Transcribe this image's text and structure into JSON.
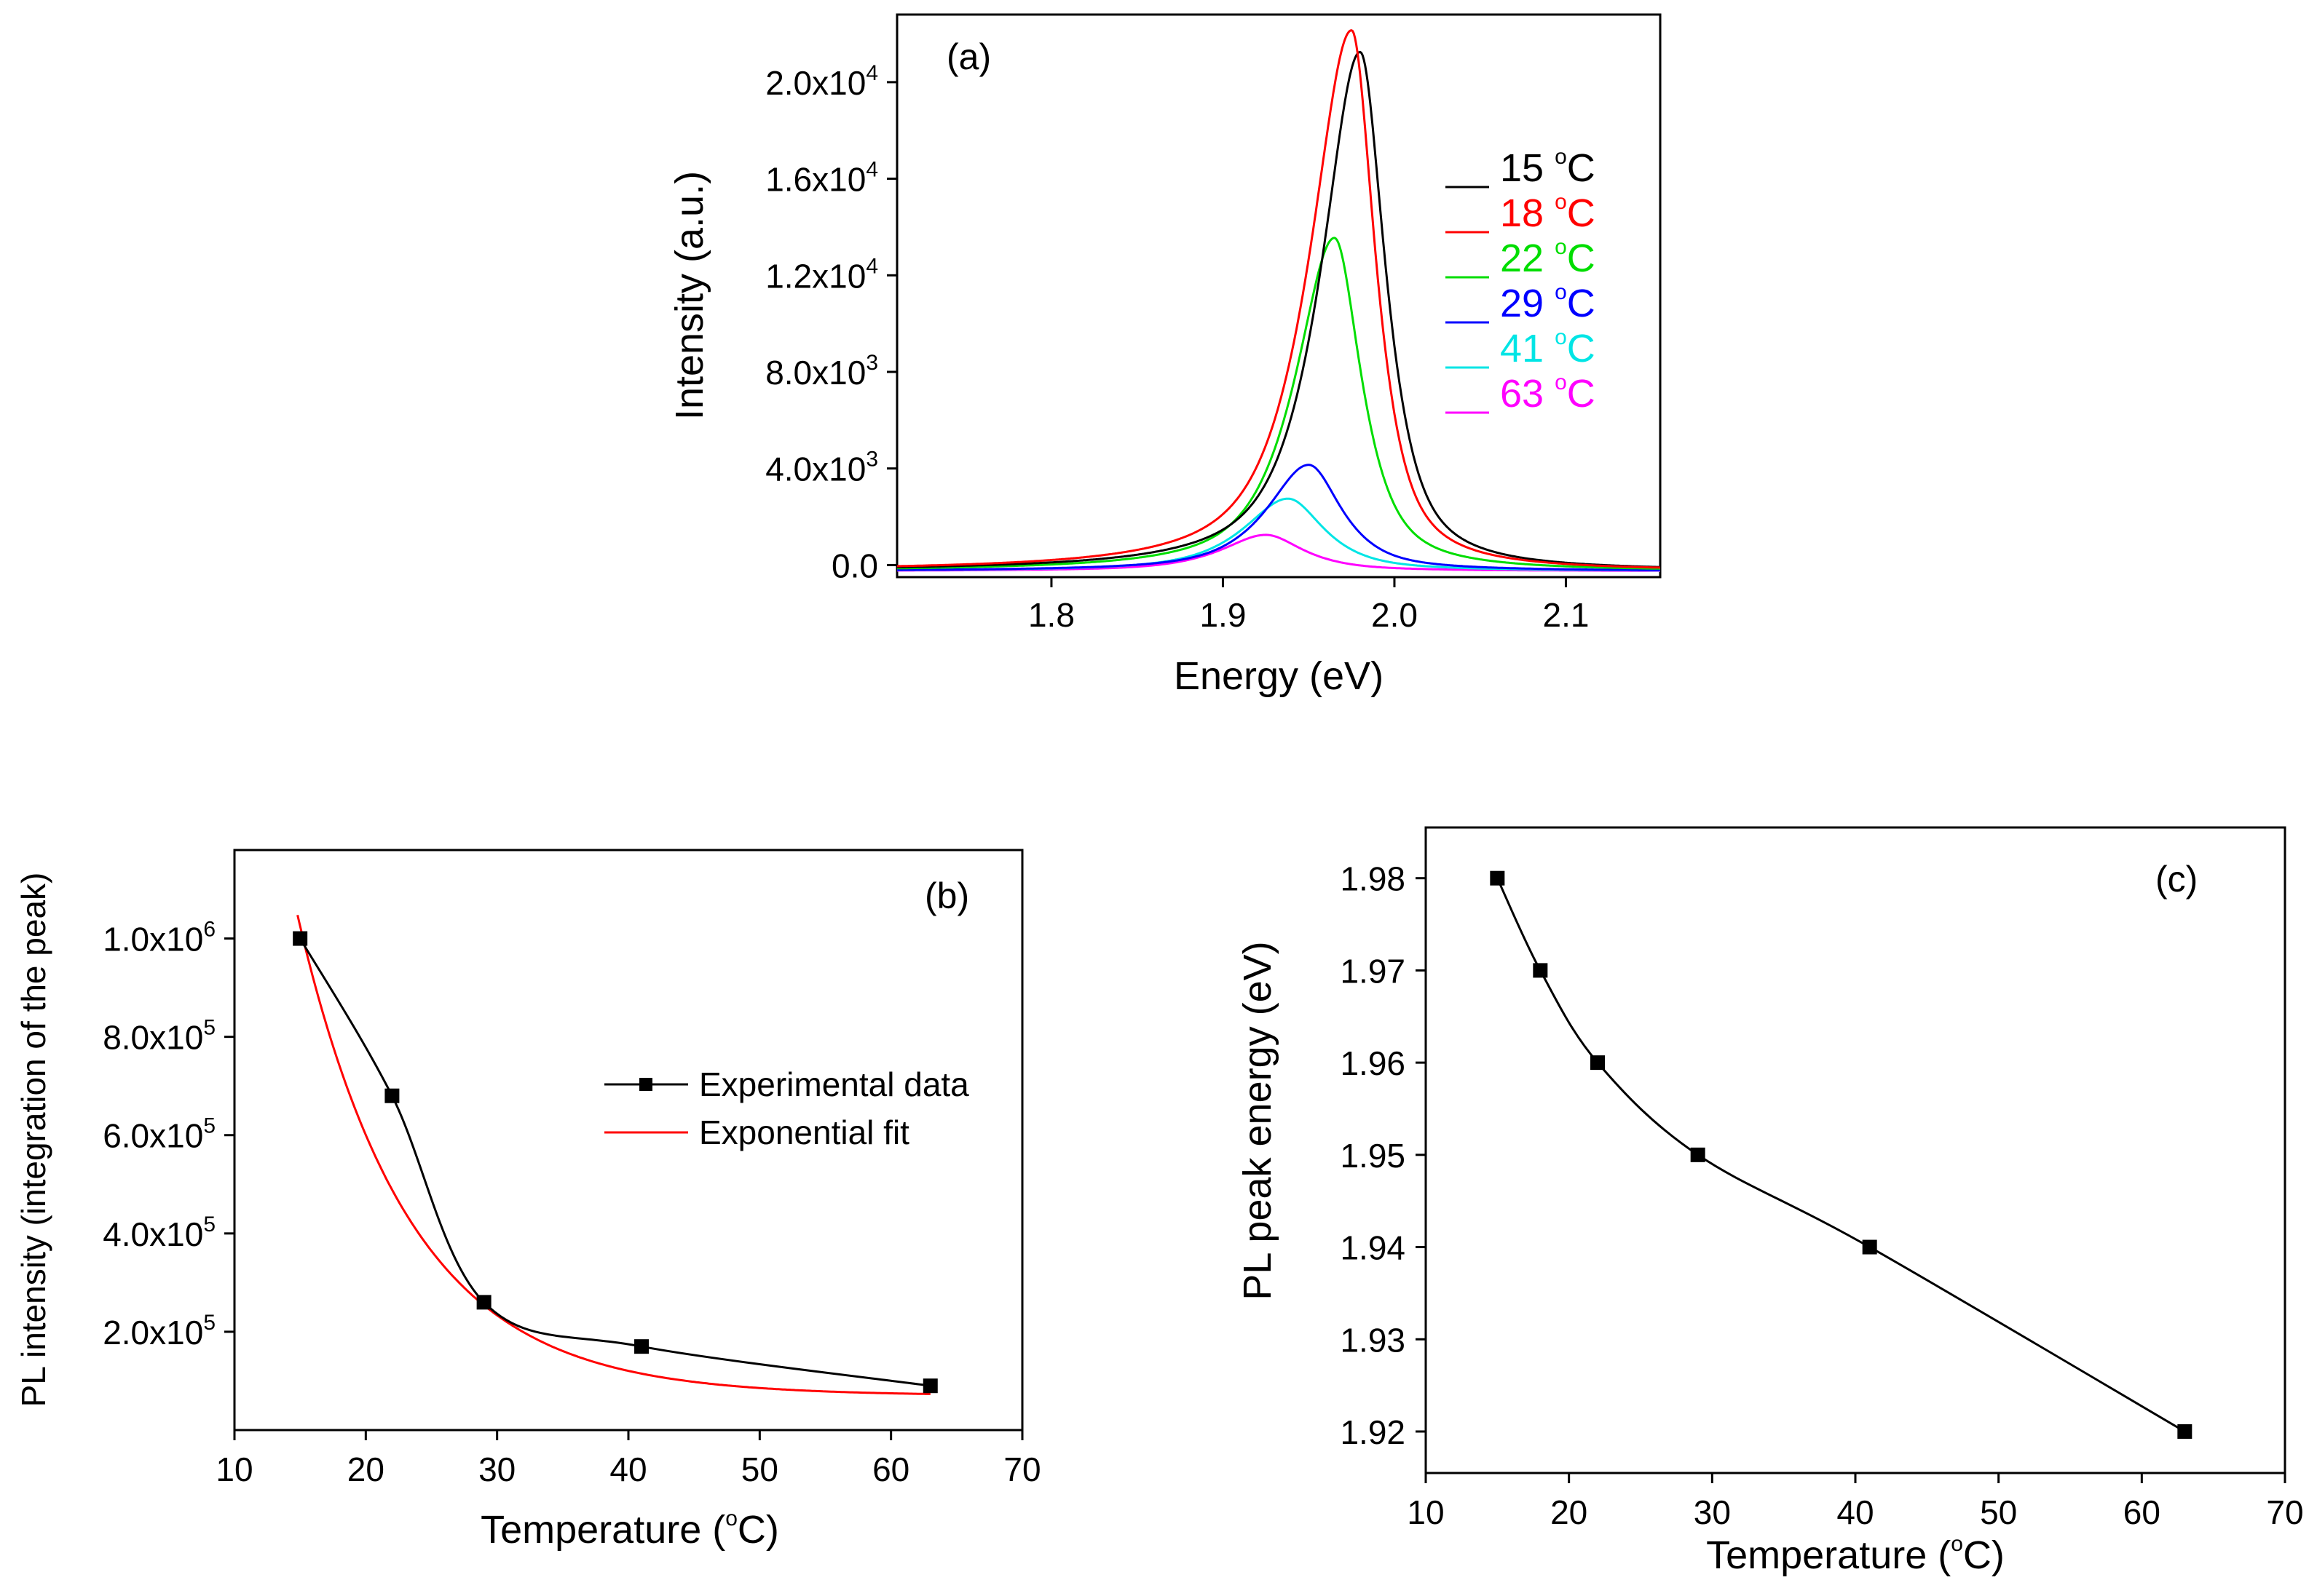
{
  "chart_data": [
    {
      "panel": "(a)",
      "type": "line",
      "xlabel": "Energy (eV)",
      "ylabel": "Intensity (a.u.)",
      "xlim": [
        1.71,
        2.155
      ],
      "ylim": [
        -500,
        22800
      ],
      "xticks": [
        1.8,
        1.9,
        2.0,
        2.1
      ],
      "xtick_labels": [
        "1.8",
        "1.9",
        "2.0",
        "2.1"
      ],
      "yticks": [
        {
          "value": 0,
          "base": "0.0",
          "exp": ""
        },
        {
          "value": 4000,
          "base": "4.0x10",
          "exp": "3"
        },
        {
          "value": 8000,
          "base": "8.0x10",
          "exp": "3"
        },
        {
          "value": 12000,
          "base": "1.2x10",
          "exp": "4"
        },
        {
          "value": 16000,
          "base": "1.6x10",
          "exp": "4"
        },
        {
          "value": 20000,
          "base": "2.0x10",
          "exp": "4"
        }
      ],
      "series": [
        {
          "name": "15",
          "unit": "°C",
          "color": "#000000",
          "peak_energy": 1.98,
          "peak_intensity": 21500,
          "width_low": 0.026,
          "width_high": 0.017
        },
        {
          "name": "18",
          "unit": "°C",
          "color": "#ff0000",
          "peak_energy": 1.975,
          "peak_intensity": 22400,
          "width_low": 0.028,
          "width_high": 0.016
        },
        {
          "name": "22",
          "unit": "°C",
          "color": "#00dd00",
          "peak_energy": 1.965,
          "peak_intensity": 13800,
          "width_low": 0.026,
          "width_high": 0.018
        },
        {
          "name": "29",
          "unit": "°C",
          "color": "#0000ff",
          "peak_energy": 1.95,
          "peak_intensity": 4400,
          "width_low": 0.028,
          "width_high": 0.022
        },
        {
          "name": "41",
          "unit": "°C",
          "color": "#00e5e5",
          "peak_energy": 1.938,
          "peak_intensity": 3000,
          "width_low": 0.03,
          "width_high": 0.024
        },
        {
          "name": "63",
          "unit": "°C",
          "color": "#ff00ff",
          "peak_energy": 1.925,
          "peak_intensity": 1500,
          "width_low": 0.03,
          "width_high": 0.025
        }
      ]
    },
    {
      "panel": "(b)",
      "type": "scatter",
      "xlabel": "Temperature (",
      "xlabel_sup": "o",
      "xlabel_end": "C)",
      "ylabel": "PL intensity (integration of the peak)",
      "xlim": [
        10,
        70
      ],
      "ylim": [
        0,
        1180000
      ],
      "xticks": [
        10,
        20,
        30,
        40,
        50,
        60,
        70
      ],
      "yticks": [
        {
          "value": 200000,
          "base": "2.0x10",
          "exp": "5"
        },
        {
          "value": 400000,
          "base": "4.0x10",
          "exp": "5"
        },
        {
          "value": 600000,
          "base": "6.0x10",
          "exp": "5"
        },
        {
          "value": 800000,
          "base": "8.0x10",
          "exp": "5"
        },
        {
          "value": 1000000,
          "base": "1.0x10",
          "exp": "6"
        }
      ],
      "series": [
        {
          "name": "Experimental data",
          "color": "#000000",
          "x": [
            15,
            22,
            29,
            41,
            63
          ],
          "y": [
            1000000,
            680000,
            260000,
            170000,
            90000
          ]
        },
        {
          "name": "Exponential fit",
          "color": "#ff0000",
          "model": "y = y0 + A*exp(-(x-15)/t)",
          "y0": 70000,
          "A": 955000,
          "t": 8.5,
          "x_range": [
            14.8,
            63
          ]
        }
      ]
    },
    {
      "panel": "(c)",
      "type": "line",
      "xlabel": "Temperature (",
      "xlabel_sup": "o",
      "xlabel_end": "C)",
      "ylabel": "PL peak energy (eV)",
      "xlim": [
        10,
        70
      ],
      "ylim": [
        1.9155,
        1.9855
      ],
      "xticks": [
        10,
        20,
        30,
        40,
        50,
        60,
        70
      ],
      "yticks": [
        1.92,
        1.93,
        1.94,
        1.95,
        1.96,
        1.97,
        1.98
      ],
      "ytick_labels": [
        "1.92",
        "1.93",
        "1.94",
        "1.95",
        "1.96",
        "1.97",
        "1.98"
      ],
      "series": [
        {
          "name": "PL peak energy",
          "color": "#000000",
          "x": [
            15,
            18,
            22,
            29,
            41,
            63
          ],
          "y": [
            1.98,
            1.97,
            1.96,
            1.95,
            1.94,
            1.92
          ]
        }
      ]
    }
  ]
}
